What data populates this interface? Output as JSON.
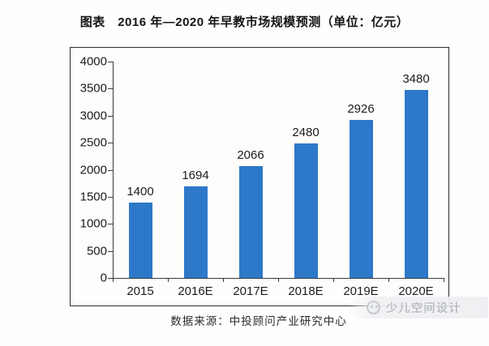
{
  "figure": {
    "title": "图表　2016 年—2020 年早教市场规模预测（单位：亿元）",
    "source": "数据来源：中投顾问产业研究中心",
    "watermark": "少儿空间设计"
  },
  "chart_data": {
    "type": "bar",
    "title": "图表　2016 年—2020 年早教市场规模预测（单位：亿元）",
    "unit": "亿元",
    "categories": [
      "2015",
      "2016E",
      "2017E",
      "2018E",
      "2019E",
      "2020E"
    ],
    "values": [
      1400,
      1694,
      2066,
      2480,
      2926,
      3480
    ],
    "xlabel": "",
    "ylabel": "",
    "ylim": [
      0,
      4000
    ],
    "yticks": [
      0,
      500,
      1000,
      1500,
      2000,
      2500,
      3000,
      3500,
      4000
    ],
    "grid": false,
    "legend": false,
    "data_labels": true,
    "bar_color": "#2d78c8",
    "source": "数据来源：中投顾问产业研究中心"
  }
}
